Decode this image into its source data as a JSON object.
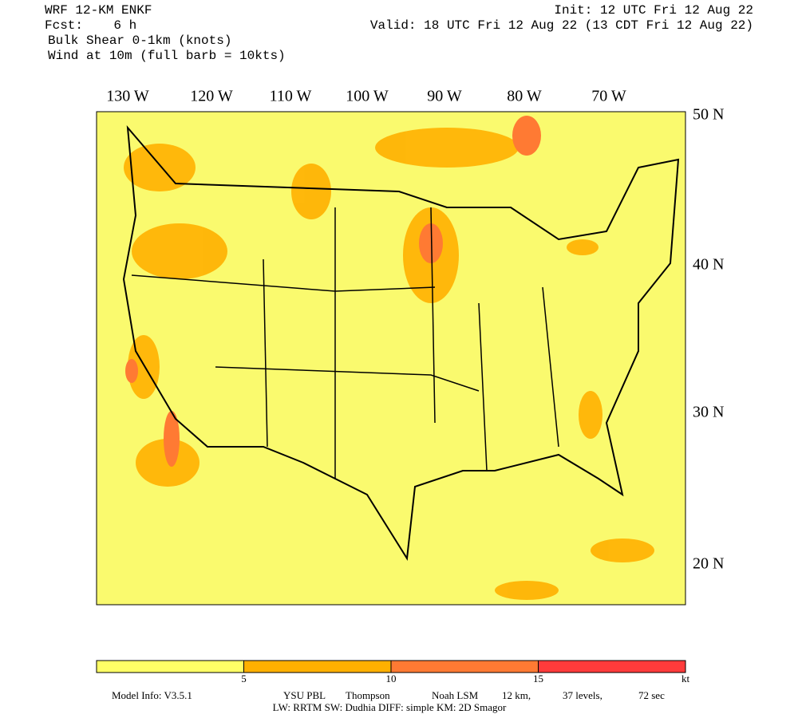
{
  "header": {
    "model": "WRF 12-KM ENKF",
    "forecast": "Fcst:    6 h",
    "field": "Bulk Shear 0-1km (knots)",
    "wind": "Wind at 10m (full barb = 10kts)",
    "init": "Init: 12 UTC Fri 12 Aug 22",
    "valid": "Valid: 18 UTC Fri 12 Aug 22 (13 CDT Fri 12 Aug 22)"
  },
  "map": {
    "longitudes": [
      "130 W",
      "120 W",
      "110 W",
      "100 W",
      "90 W",
      "80 W",
      "70 W"
    ],
    "latitudes": [
      "50 N",
      "40 N",
      "30 N",
      "20 N"
    ]
  },
  "colorbar": {
    "colors": [
      "#ffff66",
      "#ffb000",
      "#ff7a33",
      "#ff3b3b"
    ],
    "ticks": [
      5,
      10,
      15
    ],
    "unit": "kt"
  },
  "footer": {
    "line1": [
      "Model Info: V3.5.1",
      "YSU PBL",
      "Thompson",
      "Noah LSM",
      "12 km,",
      "37 levels,",
      "72 sec"
    ],
    "line2": "LW: RRTM SW: Dudhia  DIFF: simple KM: 2D Smagor"
  }
}
